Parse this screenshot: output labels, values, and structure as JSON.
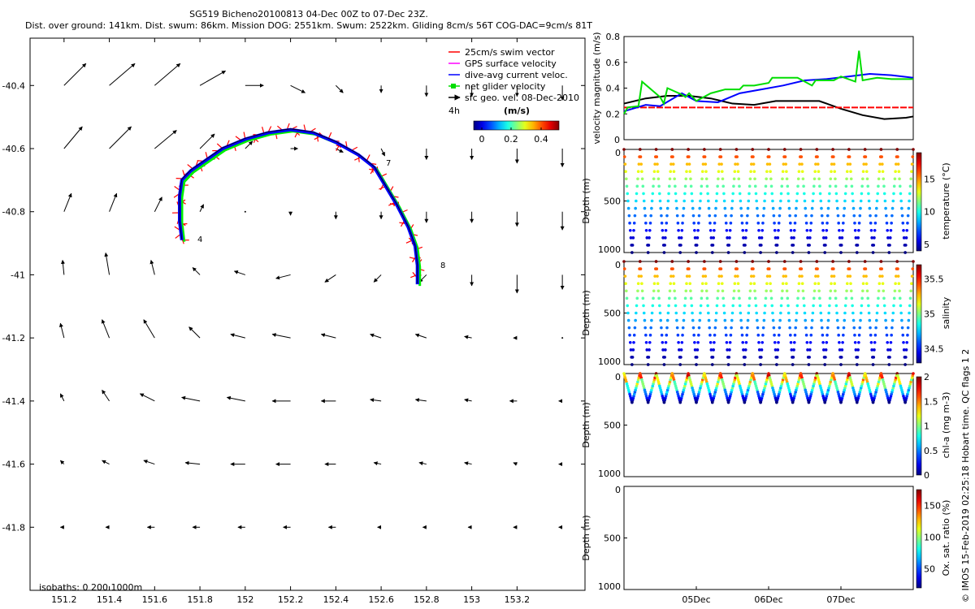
{
  "header": {
    "title": "SG519 Bicheno20100813 04-Dec 00Z to 07-Dec 23Z.",
    "subtitle": "Dist. over ground: 141km. Dist. swum: 86km. Mission DOG: 2551km. Swum: 2522km. Gliding 8cm/s 56T COG-DAC=9cm/s 81T"
  },
  "footer_vertical": "© IMOS 15-Feb-2019 02:25:18 Hobart time. QC flags 1  2",
  "isobaths_label": "isobaths: 0   200  1000m",
  "colors": {
    "swim_vector": "#ff0000",
    "gps_velocity": "#ff00ff",
    "dac": "#0000ff",
    "net_velocity": "#00ee00",
    "sfc_geo": "#000000"
  },
  "legend": {
    "items": [
      {
        "label": "25cm/s swim vector",
        "color": "#ff0000"
      },
      {
        "label": "GPS surface velocity",
        "color": "#ff00ff"
      },
      {
        "label": "dive-avg current veloc.",
        "color": "#0000ff"
      },
      {
        "label": "net glider velocity",
        "color": "#00dd00"
      },
      {
        "label": "sfc geo. vel. 08-Dec-2010",
        "color": "#000000"
      }
    ],
    "duration": "4h",
    "cb_title": "(m/s)",
    "cb_ticks": [
      "0",
      "0.2",
      "0.4"
    ]
  },
  "chart_data": [
    {
      "type": "map",
      "xlim": [
        151.05,
        153.5
      ],
      "ylim": [
        -42.0,
        -40.25
      ],
      "x_ticks": [
        "151.2",
        "151.4",
        "151.6",
        "151.8",
        "152",
        "152.2",
        "152.4",
        "152.6",
        "152.8",
        "153",
        "153.2"
      ],
      "y_ticks": [
        "-40.4",
        "-40.6",
        "-40.8",
        "-41",
        "-41.2",
        "-41.4",
        "-41.6",
        "-41.8"
      ],
      "track_dive_labels": [
        "4",
        "7",
        "8"
      ],
      "track_lonlat": [
        [
          151.72,
          -40.89
        ],
        [
          151.71,
          -40.83
        ],
        [
          151.71,
          -40.75
        ],
        [
          151.72,
          -40.7
        ],
        [
          151.76,
          -40.67
        ],
        [
          151.82,
          -40.64
        ],
        [
          151.9,
          -40.6
        ],
        [
          152.0,
          -40.57
        ],
        [
          152.1,
          -40.55
        ],
        [
          152.2,
          -40.54
        ],
        [
          152.3,
          -40.55
        ],
        [
          152.4,
          -40.58
        ],
        [
          152.5,
          -40.62
        ],
        [
          152.57,
          -40.66
        ],
        [
          152.62,
          -40.72
        ],
        [
          152.67,
          -40.78
        ],
        [
          152.72,
          -40.85
        ],
        [
          152.75,
          -40.91
        ],
        [
          152.76,
          -40.97
        ],
        [
          152.76,
          -41.03
        ]
      ],
      "current_rows": [
        {
          "lat": -40.4,
          "u": [
            0.3,
            0.35,
            0.35,
            0.35,
            0.25,
            0.2,
            0.1,
            0.0,
            0.0,
            0.0,
            0.0,
            0.0
          ],
          "v": [
            0.3,
            0.3,
            0.3,
            0.2,
            0.0,
            -0.1,
            -0.1,
            -0.1,
            -0.15,
            -0.15,
            -0.15,
            -0.2
          ]
        },
        {
          "lat": -40.6,
          "u": [
            0.25,
            0.3,
            0.3,
            0.2,
            0.1,
            0.1,
            0.1,
            0.05,
            0.0,
            0.0,
            0.0,
            0.0
          ],
          "v": [
            0.3,
            0.3,
            0.25,
            0.2,
            0.1,
            0.0,
            -0.05,
            -0.1,
            -0.15,
            -0.15,
            -0.2,
            -0.25
          ]
        },
        {
          "lat": -40.8,
          "u": [
            0.1,
            0.1,
            0.1,
            0.05,
            0.0,
            0.0,
            0.0,
            0.0,
            0.0,
            0.0,
            0.0,
            0.0
          ],
          "v": [
            0.25,
            0.25,
            0.2,
            0.1,
            0.0,
            -0.05,
            -0.1,
            -0.1,
            -0.15,
            -0.15,
            -0.2,
            -0.25
          ]
        },
        {
          "lat": -41.0,
          "u": [
            -0.02,
            -0.05,
            -0.05,
            -0.1,
            -0.15,
            -0.2,
            -0.15,
            -0.1,
            -0.1,
            0.0,
            0.0,
            0.0
          ],
          "v": [
            0.2,
            0.3,
            0.2,
            0.1,
            0.05,
            -0.05,
            -0.1,
            -0.1,
            -0.1,
            -0.15,
            -0.25,
            -0.2
          ]
        },
        {
          "lat": -41.2,
          "u": [
            -0.05,
            -0.1,
            -0.15,
            -0.15,
            -0.2,
            -0.25,
            -0.2,
            -0.15,
            -0.15,
            -0.1,
            -0.05,
            0.0
          ],
          "v": [
            0.2,
            0.25,
            0.25,
            0.15,
            0.05,
            0.05,
            0.05,
            0.05,
            0.05,
            0.02,
            0.0,
            0.0
          ]
        },
        {
          "lat": -41.4,
          "u": [
            -0.05,
            -0.1,
            -0.2,
            -0.25,
            -0.25,
            -0.25,
            -0.2,
            -0.15,
            -0.15,
            -0.1,
            -0.1,
            -0.05
          ],
          "v": [
            0.1,
            0.15,
            0.1,
            0.05,
            0.05,
            0.0,
            0.0,
            0.02,
            0.02,
            0.02,
            0.0,
            0.0
          ]
        },
        {
          "lat": -41.6,
          "u": [
            -0.05,
            -0.1,
            -0.15,
            -0.2,
            -0.2,
            -0.2,
            -0.15,
            -0.1,
            -0.1,
            -0.1,
            -0.05,
            -0.05
          ],
          "v": [
            0.05,
            0.05,
            0.05,
            0.02,
            0.0,
            0.0,
            0.0,
            0.02,
            0.02,
            0.02,
            0.02,
            0.0
          ]
        },
        {
          "lat": -41.8,
          "u": [
            -0.05,
            -0.05,
            -0.1,
            -0.1,
            -0.1,
            -0.1,
            -0.1,
            -0.05,
            -0.05,
            -0.05,
            -0.05,
            -0.05
          ],
          "v": [
            0.0,
            0.0,
            0.0,
            0.0,
            0.0,
            0.0,
            0.0,
            0.0,
            0.0,
            0.0,
            0.0,
            0.0
          ]
        }
      ],
      "current_lons": [
        151.2,
        151.4,
        151.6,
        151.8,
        152.0,
        152.2,
        152.4,
        152.6,
        152.8,
        153.0,
        153.2,
        153.4
      ]
    },
    {
      "type": "line",
      "ylabel": "velocity magnitude (m/s)",
      "ylim": [
        0,
        0.8
      ],
      "y_ticks": [
        "0",
        "0.2",
        "0.4",
        "0.6",
        "0.8"
      ],
      "x_days": [
        4.0,
        8.0
      ],
      "series": [
        {
          "color": "#000000",
          "x": [
            4.0,
            4.3,
            4.6,
            4.9,
            5.2,
            5.5,
            5.8,
            6.1,
            6.4,
            6.7,
            7.0,
            7.3,
            7.6,
            7.9,
            8.0
          ],
          "y": [
            0.28,
            0.32,
            0.34,
            0.34,
            0.32,
            0.28,
            0.27,
            0.3,
            0.3,
            0.3,
            0.24,
            0.19,
            0.16,
            0.17,
            0.18
          ]
        },
        {
          "color": "#ff0000",
          "x": [
            4.0,
            8.0
          ],
          "y": [
            0.25,
            0.25
          ]
        },
        {
          "color": "#0000ff",
          "x": [
            4.0,
            4.3,
            4.5,
            4.8,
            5.0,
            5.3,
            5.6,
            5.9,
            6.2,
            6.5,
            6.8,
            7.1,
            7.4,
            7.7,
            8.0
          ],
          "y": [
            0.22,
            0.27,
            0.26,
            0.36,
            0.3,
            0.29,
            0.36,
            0.39,
            0.42,
            0.46,
            0.47,
            0.49,
            0.51,
            0.5,
            0.48
          ]
        },
        {
          "color": "#00dd00",
          "x": [
            4.0,
            4.05,
            4.2,
            4.25,
            4.5,
            4.55,
            4.6,
            4.8,
            4.85,
            4.9,
            5.0,
            5.2,
            5.4,
            5.6,
            5.65,
            5.8,
            6.0,
            6.05,
            6.4,
            6.6,
            6.65,
            6.9,
            7.0,
            7.2,
            7.25,
            7.3,
            7.5,
            7.7,
            8.0
          ],
          "y": [
            0.2,
            0.25,
            0.26,
            0.45,
            0.33,
            0.28,
            0.4,
            0.35,
            0.33,
            0.36,
            0.3,
            0.36,
            0.39,
            0.39,
            0.42,
            0.42,
            0.44,
            0.48,
            0.48,
            0.42,
            0.46,
            0.46,
            0.49,
            0.45,
            0.69,
            0.46,
            0.48,
            0.47,
            0.47
          ]
        }
      ]
    },
    {
      "type": "scatter",
      "ylabel": "Depth (m)",
      "ylim": [
        1000,
        0
      ],
      "y_ticks": [
        "0",
        "500",
        "1000"
      ],
      "cb_label": "temperature (°C)",
      "cb_ticks": [
        "5",
        "10",
        "15"
      ],
      "cb_range": [
        4,
        19
      ],
      "n_dives": 18,
      "max_depth": 1000,
      "x_days": [
        4.0,
        8.0
      ]
    },
    {
      "type": "scatter",
      "ylabel": "Depth (m)",
      "ylim": [
        1000,
        0
      ],
      "y_ticks": [
        "0",
        "500",
        "1000"
      ],
      "cb_label": "salinity",
      "cb_ticks": [
        "34.5",
        "35",
        "35.5"
      ],
      "cb_range": [
        34.3,
        35.7
      ],
      "n_dives": 18,
      "max_depth": 1000,
      "x_days": [
        4.0,
        8.0
      ]
    },
    {
      "type": "scatter",
      "ylabel": "Depth (m)",
      "ylim": [
        1000,
        0
      ],
      "y_ticks": [
        "0",
        "500",
        "1000"
      ],
      "cb_label": "chl-a (mg m-3)",
      "cb_ticks": [
        "0",
        "0.5",
        "1",
        "1.5",
        "2"
      ],
      "cb_range": [
        0,
        2
      ],
      "n_dives": 18,
      "max_depth": 280,
      "x_days": [
        4.0,
        8.0
      ]
    },
    {
      "type": "scatter",
      "ylabel": "Depth (m)",
      "ylim": [
        1000,
        0
      ],
      "y_ticks": [
        "0",
        "500",
        "1000"
      ],
      "cb_label": "Ox. sat. ratio (%)",
      "cb_ticks": [
        "50",
        "100",
        "150"
      ],
      "cb_range": [
        20,
        175
      ],
      "n_dives": 0,
      "x_days": [
        4.0,
        8.0
      ],
      "x_ticks": [
        "05Dec",
        "06Dec",
        "07Dec"
      ],
      "x_tick_days": [
        5.0,
        6.0,
        7.0
      ]
    }
  ]
}
